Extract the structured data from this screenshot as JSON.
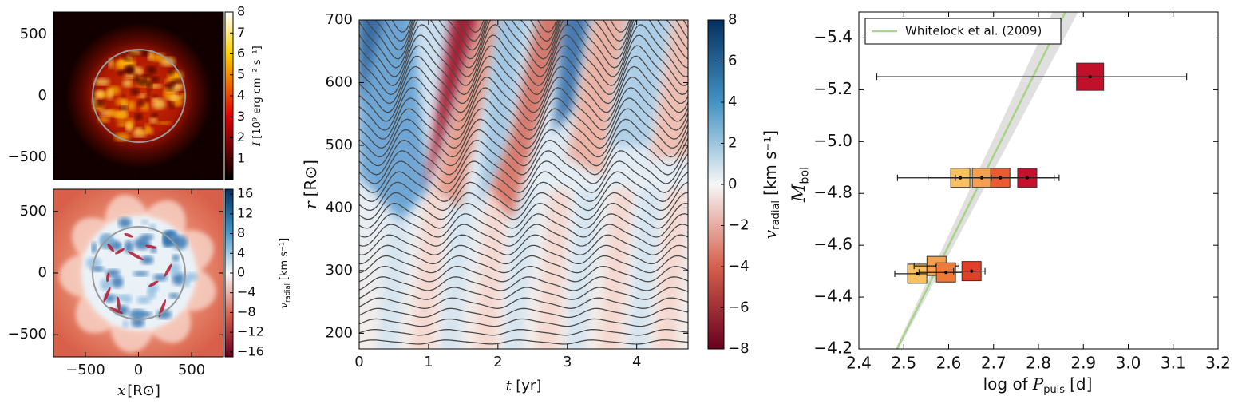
{
  "chart_data": [
    {
      "type": "heatmap",
      "colormap": "hot",
      "xlim": [
        -800,
        800
      ],
      "ylim": [
        -680,
        680
      ],
      "xticks": [
        -500,
        0,
        500
      ],
      "show_xtick_labels": false,
      "yticks": [
        500,
        0,
        {
          "value": -500,
          "label": "−500"
        }
      ],
      "clim": [
        0,
        8
      ],
      "cticks": [
        1,
        2,
        3,
        4,
        5,
        6,
        7,
        8
      ],
      "colorbar_label": {
        "symbol": "I",
        "unit": "[10⁹ erg cm⁻² s⁻¹]"
      }
    },
    {
      "type": "heatmap",
      "colormap": "RdBu",
      "xlim": [
        -800,
        800
      ],
      "ylim": [
        -680,
        680
      ],
      "xticks": [
        {
          "value": -500,
          "label": "−500"
        },
        0,
        500
      ],
      "yticks": [
        500,
        0,
        {
          "value": -500,
          "label": "−500"
        }
      ],
      "xlabel": {
        "symbol": "x",
        "unit": "[R⊙]"
      },
      "clim": [
        -17,
        17
      ],
      "cticks": [
        16,
        12,
        8,
        4,
        0,
        {
          "value": -4,
          "label": "−4"
        },
        {
          "value": -8,
          "label": "−8"
        },
        {
          "value": -12,
          "label": "−12"
        },
        {
          "value": -16,
          "label": "−16"
        }
      ],
      "colorbar_label": {
        "symbol": "v",
        "sub": "radial",
        "unit": "[km s⁻¹]"
      }
    },
    {
      "type": "heatmap",
      "colormap": "RdBu",
      "xlim": [
        0,
        4.74
      ],
      "ylim": [
        175,
        700
      ],
      "xticks": [
        0,
        1,
        2,
        3,
        4
      ],
      "yticks": [
        200,
        300,
        400,
        500,
        600,
        700
      ],
      "xlabel": {
        "symbol": "t",
        "unit": "[yr]"
      },
      "ylabel": {
        "symbol": "r",
        "unit": "[R⊙]"
      },
      "clim": [
        -8,
        8
      ],
      "cticks": [
        8,
        6,
        4,
        2,
        0,
        {
          "value": -2,
          "label": "−2"
        },
        {
          "value": -4,
          "label": "−4"
        },
        {
          "value": -6,
          "label": "−6"
        },
        {
          "value": -8,
          "label": "−8"
        }
      ],
      "colorbar_label": {
        "symbol": "v",
        "sub": "radial",
        "unit": "[km s⁻¹]"
      }
    },
    {
      "type": "scatter",
      "xlim": [
        2.4,
        3.2
      ],
      "ylim": [
        -4.2,
        -5.5
      ],
      "xticks": [
        2.4,
        2.5,
        2.6,
        2.7,
        2.8,
        2.9,
        {
          "value": 3,
          "label": "3.0"
        },
        3.1,
        3.2
      ],
      "yticks": [
        {
          "value": -4.2,
          "label": "−4.2"
        },
        {
          "value": -4.4,
          "label": "−4.4"
        },
        {
          "value": -4.6,
          "label": "−4.6"
        },
        {
          "value": -4.8,
          "label": "−4.8"
        },
        {
          "value": -5,
          "label": "−5.0"
        },
        {
          "value": -5.2,
          "label": "−5.2"
        },
        {
          "value": -5.4,
          "label": "−5.4"
        }
      ],
      "xlabel": {
        "text": "log of",
        "symbol": "P",
        "sub": "puls",
        "unit": "[d]"
      },
      "ylabel": {
        "symbol": "M",
        "sub": "bol"
      },
      "legend": "upper left",
      "series": [
        {
          "name": "Whitelock et al. (2009)",
          "color": "#a6d48a",
          "x": [
            2.485,
            2.86
          ],
          "y": [
            -4.2,
            -5.5
          ]
        }
      ],
      "points": {
        "x": [
          2.915,
          2.626,
          2.674,
          2.715,
          2.775,
          2.53,
          2.573,
          2.594,
          2.651
        ],
        "y": [
          -5.25,
          -4.86,
          -4.86,
          -4.86,
          -4.86,
          -4.49,
          -4.52,
          -4.495,
          -4.5
        ],
        "xerr_minus": [
          0.475,
          0.14,
          0.12,
          0.1,
          0.08,
          0.05,
          0.05,
          0.06,
          0.04
        ],
        "xerr_plus": [
          0.215,
          0.22,
          0.08,
          0.08,
          0.06,
          0.05,
          0.05,
          0.05,
          0.03
        ],
        "colors": [
          "#c0102a",
          "#f7c060",
          "#f4a050",
          "#ec5a32",
          "#c8102e",
          "#f7c060",
          "#f4a050",
          "#f07838",
          "#e0402a"
        ]
      }
    }
  ]
}
